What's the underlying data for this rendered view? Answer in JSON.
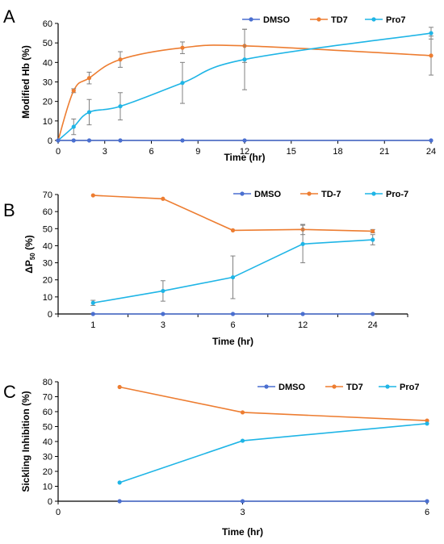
{
  "colors": {
    "dmso": "#4a6fd0",
    "td7": "#ed7d31",
    "pro7": "#1fb5e6",
    "error": "#808080"
  },
  "chart_data": [
    {
      "panel": "A",
      "type": "line",
      "xlabel": "Time (hr)",
      "ylabel": "Modified Hb (%)",
      "xlim": [
        0,
        24
      ],
      "ylim": [
        0,
        60
      ],
      "xticks": [
        "0",
        "3",
        "6",
        "9",
        "12",
        "15",
        "18",
        "21",
        "24"
      ],
      "yticks": [
        "0",
        "10",
        "20",
        "30",
        "40",
        "50",
        "60"
      ],
      "legend_position": "top-right",
      "series": [
        {
          "name": "DMSO",
          "x": [
            0,
            1,
            2,
            4,
            8,
            12,
            24
          ],
          "values": [
            0,
            0,
            0,
            0,
            0,
            0,
            0
          ],
          "error": [
            0,
            0,
            0,
            0,
            0,
            0,
            0
          ]
        },
        {
          "name": "TD7",
          "x": [
            0,
            1,
            2,
            4,
            8,
            12,
            24
          ],
          "values": [
            0,
            25.5,
            32,
            41.5,
            47.5,
            48.5,
            43.5
          ],
          "error": [
            0,
            1,
            3,
            4,
            3,
            8.5,
            10
          ]
        },
        {
          "name": "Pro7",
          "x": [
            0,
            1,
            2,
            4,
            8,
            12,
            24
          ],
          "values": [
            0,
            7,
            14.5,
            17.5,
            29.5,
            41.5,
            55
          ],
          "error": [
            0,
            4,
            6.5,
            7,
            10.5,
            15.5,
            3
          ]
        }
      ]
    },
    {
      "panel": "B",
      "type": "line",
      "xlabel": "Time (hr)",
      "ylabel_main": "ΔP",
      "ylabel_sub": "50",
      "ylabel_tail": " (%)",
      "categories": [
        "1",
        "3",
        "6",
        "12",
        "24"
      ],
      "ylim": [
        0,
        70
      ],
      "yticks": [
        "0",
        "10",
        "20",
        "30",
        "40",
        "50",
        "60",
        "70"
      ],
      "legend_position": "top-right",
      "series": [
        {
          "name": "DMSO",
          "values": [
            0,
            0,
            0,
            0,
            0
          ],
          "error": [
            0,
            0,
            0,
            0,
            0
          ]
        },
        {
          "name": "TD-7",
          "values": [
            69.5,
            67.5,
            49,
            49.5,
            48.5
          ],
          "error": [
            0,
            0,
            0,
            3,
            1
          ]
        },
        {
          "name": "Pro-7",
          "values": [
            6.5,
            13.5,
            21.5,
            41,
            43.5
          ],
          "error": [
            1.5,
            6,
            12.5,
            11,
            3
          ]
        }
      ]
    },
    {
      "panel": "C",
      "type": "line",
      "xlabel": "Time (hr)",
      "ylabel": "Sickling Inhibition (%)",
      "xlim": [
        0,
        6
      ],
      "ylim": [
        0,
        80
      ],
      "xticks": [
        "0",
        "3",
        "6"
      ],
      "yticks": [
        "0",
        "10",
        "20",
        "30",
        "40",
        "50",
        "60",
        "70",
        "80"
      ],
      "legend_position": "top-right",
      "series": [
        {
          "name": "DMSO",
          "x": [
            1,
            3,
            6
          ],
          "values": [
            0,
            0,
            0
          ]
        },
        {
          "name": "TD7",
          "x": [
            1,
            3,
            6
          ],
          "values": [
            76.5,
            59.5,
            54
          ]
        },
        {
          "name": "Pro7",
          "x": [
            1,
            3,
            6
          ],
          "values": [
            12.5,
            40.5,
            52
          ]
        }
      ]
    }
  ]
}
